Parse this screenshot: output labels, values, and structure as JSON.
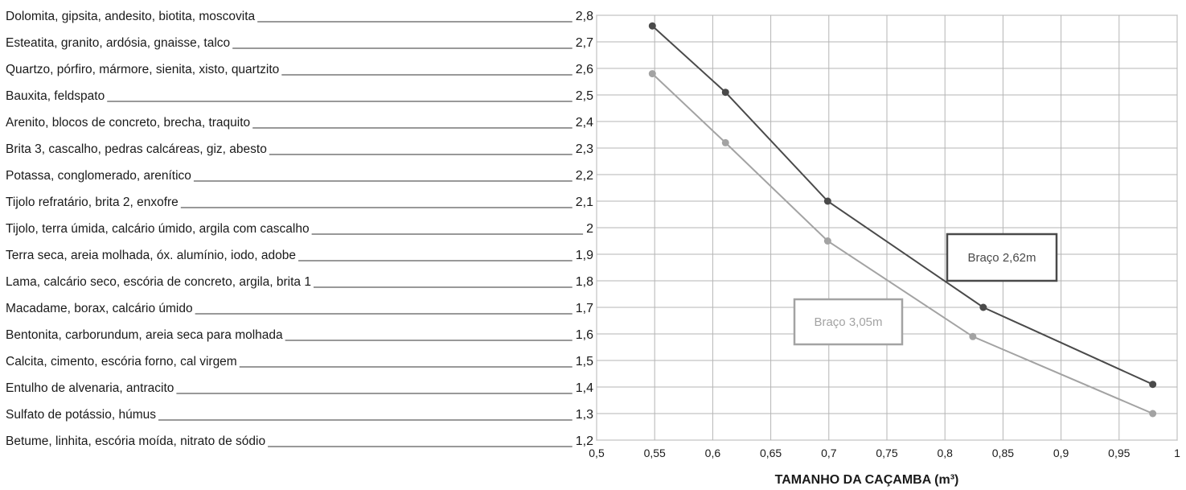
{
  "chart_data": {
    "type": "line",
    "xlabel": "TAMANHO DA CAÇAMBA (m³)",
    "ylabel": "",
    "xlim": [
      0.5,
      1
    ],
    "ylim": [
      1.2,
      2.8
    ],
    "x_ticks": [
      "0,5",
      "0,55",
      "0,6",
      "0,65",
      "0,7",
      "0,75",
      "0,8",
      "0,85",
      "0,9",
      "0,95",
      "1"
    ],
    "y_ticks": [
      "2,8",
      "2,7",
      "2,6",
      "2,5",
      "2,4",
      "2,3",
      "2,2",
      "2,1",
      "2",
      "1,9",
      "1,8",
      "1,7",
      "1,6",
      "1,5",
      "1,4",
      "1,3",
      "1,2"
    ],
    "y_values": [
      2.8,
      2.7,
      2.6,
      2.5,
      2.4,
      2.3,
      2.2,
      2.1,
      2.0,
      1.9,
      1.8,
      1.7,
      1.6,
      1.5,
      1.4,
      1.3,
      1.2
    ],
    "materials": [
      "Dolomita, gipsita, andesito, biotita, moscovita",
      "Esteatita, granito, ardósia, gnaisse, talco",
      "Quartzo, pórfiro, mármore, sienita, xisto, quartzito",
      "Bauxita, feldspato",
      "Arenito, blocos de concreto, brecha, traquito",
      "Brita 3, cascalho, pedras calcáreas, giz, abesto",
      "Potassa, conglomerado, arenítico",
      "Tijolo refratário, brita 2, enxofre",
      "Tijolo, terra úmida, calcário úmido, argila com cascalho",
      "Terra seca, areia molhada, óx. alumínio, iodo, adobe",
      "Lama, calcário seco, escória de concreto, argila, brita 1",
      "Macadame, borax, calcário úmido",
      "Bentonita, carborundum, areia seca para molhada",
      "Calcita, cimento, escória forno, cal virgem",
      "Entulho de alvenaria, antracito",
      "Sulfato de potássio, húmus",
      "Betume, linhita, escória moída, nitrato de sódio"
    ],
    "series": [
      {
        "name": "Braço 2,62m",
        "color": "#4a4a4a",
        "x": [
          0.548,
          0.611,
          0.699,
          0.833,
          0.979
        ],
        "y": [
          2.76,
          2.51,
          2.1,
          1.7,
          1.41
        ]
      },
      {
        "name": "Braço 3,05m",
        "color": "#a3a3a3",
        "x": [
          0.548,
          0.611,
          0.699,
          0.824,
          0.979
        ],
        "y": [
          2.58,
          2.32,
          1.95,
          1.59,
          1.3
        ]
      }
    ],
    "grid": true
  }
}
